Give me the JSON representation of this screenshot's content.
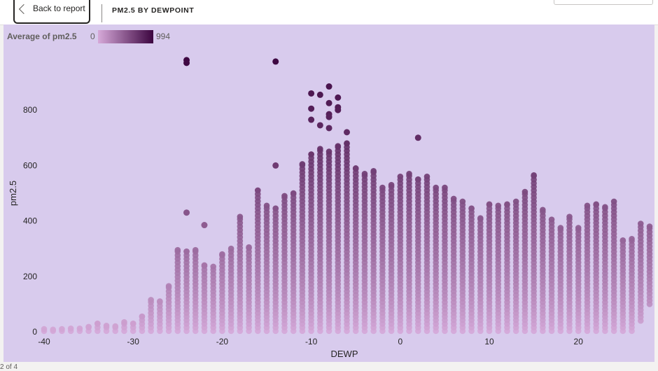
{
  "header": {
    "back_label": "Back to report",
    "visual_title": "PM2.5 BY DEWPOINT"
  },
  "legend": {
    "title": "Average of pm2.5",
    "min": "0",
    "max": "994",
    "color_low": "#d6a9d9",
    "color_high": "#3c0540"
  },
  "footer": {
    "page_indicator": "2 of 4"
  },
  "colors": {
    "panel_bg": "#d8cbed"
  },
  "chart_data": {
    "type": "scatter",
    "title": "",
    "xlabel": "DEWP",
    "ylabel": "pm2.5",
    "xlim": [
      -40,
      28
    ],
    "ylim": [
      0,
      1000
    ],
    "xticks": [
      -40,
      -30,
      -20,
      -10,
      0,
      10,
      20
    ],
    "yticks": [
      0,
      200,
      400,
      600,
      800
    ],
    "grid": false,
    "legend_position": "top-left",
    "color_encoding": "Average of pm2.5 (0–994)",
    "columns": [
      {
        "x": -40,
        "min": 3,
        "max": 10
      },
      {
        "x": -39,
        "min": 3,
        "max": 8
      },
      {
        "x": -38,
        "min": 3,
        "max": 10
      },
      {
        "x": -37,
        "min": 3,
        "max": 12
      },
      {
        "x": -36,
        "min": 3,
        "max": 12
      },
      {
        "x": -35,
        "min": 3,
        "max": 18
      },
      {
        "x": -34,
        "min": 3,
        "max": 30
      },
      {
        "x": -33,
        "min": 3,
        "max": 22
      },
      {
        "x": -32,
        "min": 3,
        "max": 20
      },
      {
        "x": -31,
        "min": 3,
        "max": 35
      },
      {
        "x": -30,
        "min": 3,
        "max": 30
      },
      {
        "x": -29,
        "min": 3,
        "max": 55
      },
      {
        "x": -28,
        "min": 3,
        "max": 115
      },
      {
        "x": -27,
        "min": 3,
        "max": 110
      },
      {
        "x": -26,
        "min": 3,
        "max": 165
      },
      {
        "x": -25,
        "min": 3,
        "max": 295
      },
      {
        "x": -24,
        "min": 3,
        "max": 290
      },
      {
        "x": -23,
        "min": 3,
        "max": 295
      },
      {
        "x": -22,
        "min": 3,
        "max": 240
      },
      {
        "x": -21,
        "min": 3,
        "max": 235
      },
      {
        "x": -20,
        "min": 3,
        "max": 280
      },
      {
        "x": -19,
        "min": 3,
        "max": 300
      },
      {
        "x": -18,
        "min": 3,
        "max": 415
      },
      {
        "x": -17,
        "min": 3,
        "max": 305
      },
      {
        "x": -16,
        "min": 3,
        "max": 510
      },
      {
        "x": -15,
        "min": 3,
        "max": 455
      },
      {
        "x": -14,
        "min": 3,
        "max": 445
      },
      {
        "x": -13,
        "min": 3,
        "max": 490
      },
      {
        "x": -12,
        "min": 3,
        "max": 500
      },
      {
        "x": -11,
        "min": 3,
        "max": 605
      },
      {
        "x": -10,
        "min": 3,
        "max": 640
      },
      {
        "x": -9,
        "min": 3,
        "max": 660
      },
      {
        "x": -8,
        "min": 3,
        "max": 650
      },
      {
        "x": -7,
        "min": 3,
        "max": 670
      },
      {
        "x": -6,
        "min": 3,
        "max": 680
      },
      {
        "x": -5,
        "min": 3,
        "max": 590
      },
      {
        "x": -4,
        "min": 3,
        "max": 570
      },
      {
        "x": -3,
        "min": 3,
        "max": 580
      },
      {
        "x": -2,
        "min": 3,
        "max": 520
      },
      {
        "x": -1,
        "min": 3,
        "max": 530
      },
      {
        "x": 0,
        "min": 3,
        "max": 560
      },
      {
        "x": 1,
        "min": 3,
        "max": 570
      },
      {
        "x": 2,
        "min": 3,
        "max": 550
      },
      {
        "x": 3,
        "min": 3,
        "max": 560
      },
      {
        "x": 4,
        "min": 3,
        "max": 520
      },
      {
        "x": 5,
        "min": 3,
        "max": 520
      },
      {
        "x": 6,
        "min": 3,
        "max": 480
      },
      {
        "x": 7,
        "min": 3,
        "max": 470
      },
      {
        "x": 8,
        "min": 3,
        "max": 445
      },
      {
        "x": 9,
        "min": 3,
        "max": 410
      },
      {
        "x": 10,
        "min": 3,
        "max": 460
      },
      {
        "x": 11,
        "min": 3,
        "max": 455
      },
      {
        "x": 12,
        "min": 3,
        "max": 460
      },
      {
        "x": 13,
        "min": 3,
        "max": 470
      },
      {
        "x": 14,
        "min": 3,
        "max": 505
      },
      {
        "x": 15,
        "min": 3,
        "max": 565
      },
      {
        "x": 16,
        "min": 3,
        "max": 440
      },
      {
        "x": 17,
        "min": 3,
        "max": 405
      },
      {
        "x": 18,
        "min": 3,
        "max": 375
      },
      {
        "x": 19,
        "min": 3,
        "max": 415
      },
      {
        "x": 20,
        "min": 3,
        "max": 375
      },
      {
        "x": 21,
        "min": 3,
        "max": 455
      },
      {
        "x": 22,
        "min": 3,
        "max": 460
      },
      {
        "x": 23,
        "min": 3,
        "max": 450
      },
      {
        "x": 24,
        "min": 3,
        "max": 470
      },
      {
        "x": 25,
        "min": 3,
        "max": 330
      },
      {
        "x": 26,
        "min": 3,
        "max": 335
      },
      {
        "x": 27,
        "min": 40,
        "max": 390
      },
      {
        "x": 28,
        "min": 100,
        "max": 380
      }
    ],
    "outliers": [
      {
        "x": -24,
        "y": 980
      },
      {
        "x": -24,
        "y": 970
      },
      {
        "x": -14,
        "y": 975
      },
      {
        "x": -10,
        "y": 860
      },
      {
        "x": -9,
        "y": 855
      },
      {
        "x": -8,
        "y": 885
      },
      {
        "x": -7,
        "y": 845
      },
      {
        "x": -10,
        "y": 805
      },
      {
        "x": -8,
        "y": 825
      },
      {
        "x": -7,
        "y": 810
      },
      {
        "x": -7,
        "y": 800
      },
      {
        "x": -8,
        "y": 785
      },
      {
        "x": -8,
        "y": 775
      },
      {
        "x": -10,
        "y": 765
      },
      {
        "x": -9,
        "y": 745
      },
      {
        "x": -8,
        "y": 735
      },
      {
        "x": -6,
        "y": 720
      },
      {
        "x": 2,
        "y": 700
      },
      {
        "x": -14,
        "y": 600
      },
      {
        "x": -24,
        "y": 430
      },
      {
        "x": -22,
        "y": 385
      }
    ]
  }
}
